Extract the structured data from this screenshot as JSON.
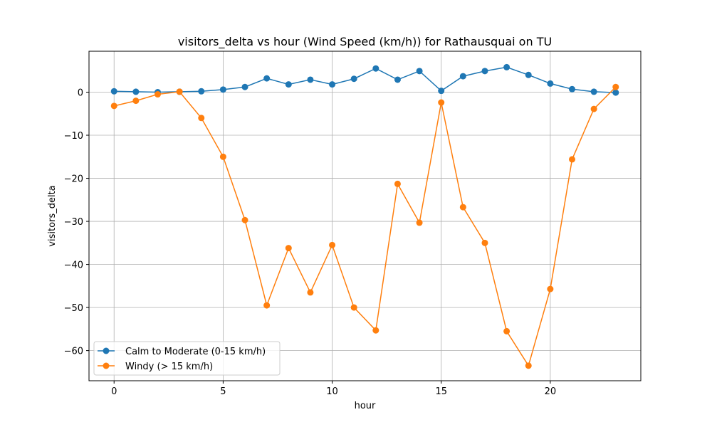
{
  "chart_data": {
    "type": "line",
    "title": "visitors_delta vs hour (Wind Speed (km/h)) for Rathausquai on TU",
    "xlabel": "hour",
    "ylabel": "visitors_delta",
    "xlim": [
      -1.15,
      24.15
    ],
    "ylim": [
      -67,
      9.5
    ],
    "xticks": [
      0,
      5,
      10,
      15,
      20
    ],
    "yticks": [
      0,
      -10,
      -20,
      -30,
      -40,
      -50,
      -60
    ],
    "grid": true,
    "legend_position": "lower-left",
    "x": [
      0,
      1,
      2,
      3,
      4,
      5,
      6,
      7,
      8,
      9,
      10,
      11,
      12,
      13,
      14,
      15,
      16,
      17,
      18,
      19,
      20,
      21,
      22,
      23
    ],
    "series": [
      {
        "name": "Calm to Moderate (0-15 km/h)",
        "color": "#1f77b4",
        "values": [
          0.2,
          0.1,
          0.0,
          0.1,
          0.2,
          0.6,
          1.2,
          3.2,
          1.8,
          2.9,
          1.8,
          3.1,
          5.5,
          2.9,
          4.9,
          0.3,
          3.7,
          4.9,
          5.8,
          4.0,
          2.0,
          0.7,
          0.1,
          -0.1
        ]
      },
      {
        "name": "Windy (> 15 km/h)",
        "color": "#ff7f0e",
        "values": [
          -3.2,
          -2.0,
          -0.5,
          0.1,
          -6.0,
          -15.0,
          -29.7,
          -49.5,
          -36.2,
          -46.5,
          -35.5,
          -50.0,
          -55.3,
          -21.3,
          -30.3,
          -2.4,
          -26.7,
          -35.0,
          -55.5,
          -63.5,
          -45.7,
          -15.6,
          -3.9,
          1.2
        ]
      }
    ]
  }
}
